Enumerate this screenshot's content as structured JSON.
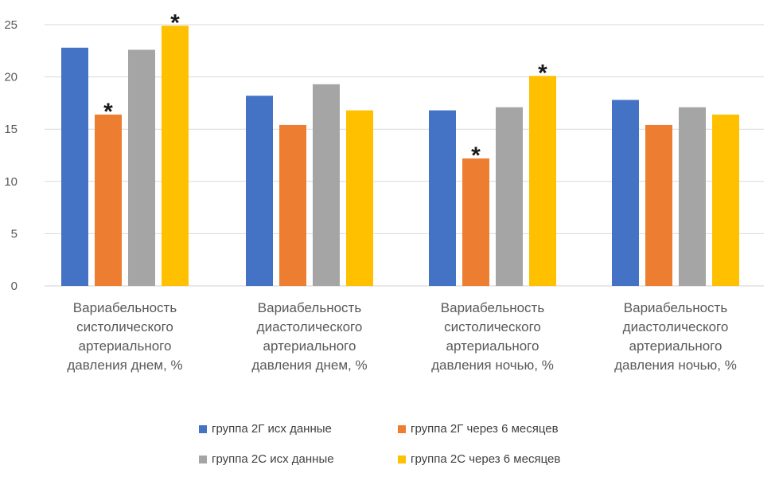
{
  "chart_data": {
    "type": "bar",
    "categories": [
      [
        "Вариабельность",
        "систолического",
        "артериального",
        "давления днем, %"
      ],
      [
        "Вариабельность",
        "диастолического",
        "артериального",
        "давления днем, %"
      ],
      [
        "Вариабельность",
        "систолического",
        "артериального",
        "давления ночью, %"
      ],
      [
        "Вариабельность",
        "диастолического",
        "артериального",
        "давления ночью, %"
      ]
    ],
    "series": [
      {
        "name": "группа 2Г исх данные",
        "color": "#4472C4",
        "values": [
          22.8,
          18.2,
          16.8,
          17.8
        ]
      },
      {
        "name": "группа 2Г через 6 месяцев",
        "color": "#ED7D31",
        "values": [
          16.4,
          15.4,
          12.2,
          15.4
        ]
      },
      {
        "name": "группа 2С исх данные",
        "color": "#A5A5A5",
        "values": [
          22.6,
          19.3,
          17.1,
          17.1
        ]
      },
      {
        "name": "группа 2С через 6 месяцев",
        "color": "#FFC000",
        "values": [
          24.9,
          16.8,
          20.1,
          16.4
        ]
      }
    ],
    "annotations": [
      {
        "text": "*",
        "category_index": 0,
        "series_index": 1
      },
      {
        "text": "*",
        "category_index": 0,
        "series_index": 3
      },
      {
        "text": "*",
        "category_index": 2,
        "series_index": 1
      },
      {
        "text": "*",
        "category_index": 2,
        "series_index": 3
      }
    ],
    "ylim": [
      0,
      25
    ],
    "yticks": [
      "0",
      "5",
      "10",
      "15",
      "20",
      "25"
    ],
    "grid": true,
    "legend_position": "bottom"
  }
}
